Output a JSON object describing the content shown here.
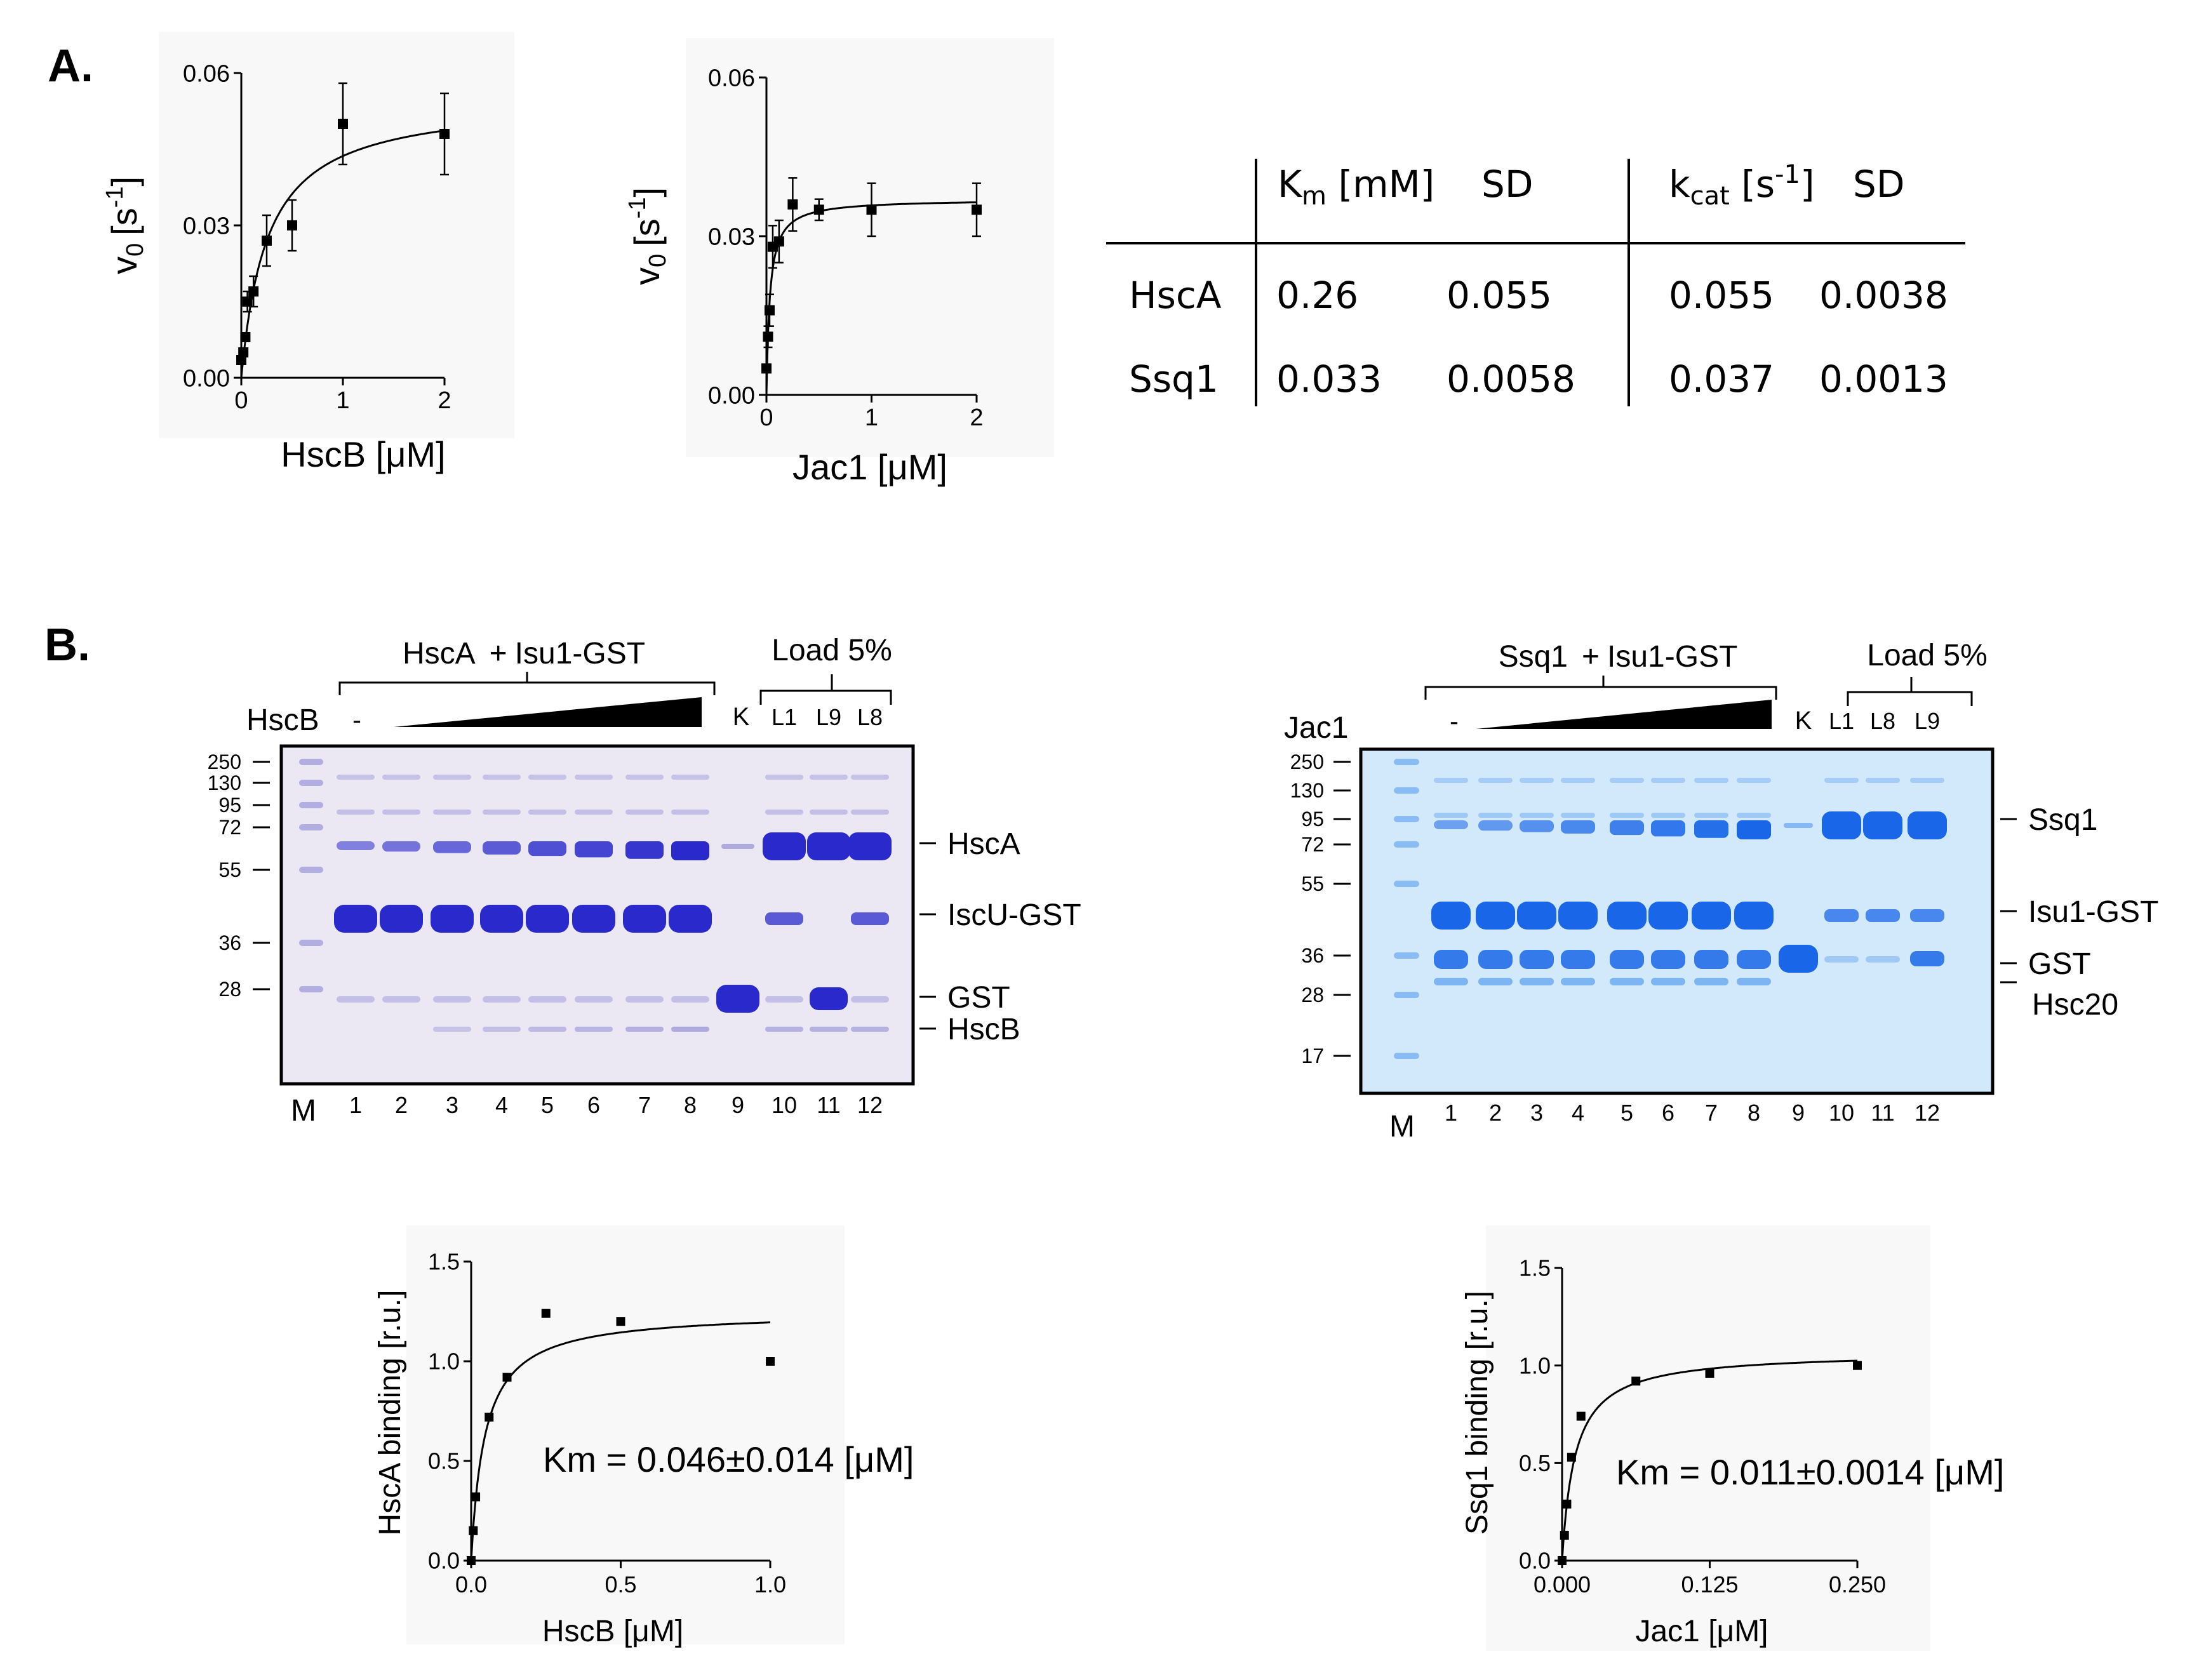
{
  "panel_labels": [
    "A.",
    "B."
  ],
  "chart_data": [
    {
      "id": "hscb-rate",
      "type": "scatter",
      "title": "",
      "xlabel": "HscB [μM]",
      "ylabel_main": "v",
      "ylabel_sub": "0",
      "ylabel_unit": "[s",
      "ylabel_sup": "-1",
      "ylabel_close": "]",
      "xlim": [
        0,
        2
      ],
      "ylim": [
        0,
        0.06
      ],
      "x_ticks": [
        0,
        1,
        2
      ],
      "x_tick_labels": [
        "0",
        "1",
        "2"
      ],
      "y_ticks": [
        0,
        0.03,
        0.06
      ],
      "y_tick_labels": [
        "0.00",
        "0.03",
        "0.06"
      ],
      "points": [
        {
          "x": 0.0,
          "y": 0.0035,
          "err": 0
        },
        {
          "x": 0.02,
          "y": 0.005,
          "err": 0
        },
        {
          "x": 0.04,
          "y": 0.008,
          "err": 0
        },
        {
          "x": 0.06,
          "y": 0.015,
          "err": 0.002
        },
        {
          "x": 0.12,
          "y": 0.017,
          "err": 0.003
        },
        {
          "x": 0.25,
          "y": 0.027,
          "err": 0.005
        },
        {
          "x": 0.5,
          "y": 0.03,
          "err": 0.005
        },
        {
          "x": 1.0,
          "y": 0.05,
          "err": 0.008
        },
        {
          "x": 2.0,
          "y": 0.048,
          "err": 0.008
        }
      ],
      "fit": {
        "vmax": 0.055,
        "km": 0.26
      }
    },
    {
      "id": "jac1-rate",
      "type": "scatter",
      "title": "",
      "xlabel": "Jac1 [μM]",
      "ylabel_main": "v",
      "ylabel_sub": "0",
      "ylabel_unit": "[s",
      "ylabel_sup": "-1",
      "ylabel_close": "]",
      "xlim": [
        0,
        2
      ],
      "ylim": [
        0,
        0.06
      ],
      "x_ticks": [
        0,
        1,
        2
      ],
      "x_tick_labels": [
        "0",
        "1",
        "2"
      ],
      "y_ticks": [
        0,
        0.03,
        0.06
      ],
      "y_tick_labels": [
        "0.00",
        "0.03",
        "0.06"
      ],
      "points": [
        {
          "x": 0.0,
          "y": 0.005,
          "err": 0
        },
        {
          "x": 0.015,
          "y": 0.011,
          "err": 0.002
        },
        {
          "x": 0.03,
          "y": 0.016,
          "err": 0.003
        },
        {
          "x": 0.06,
          "y": 0.028,
          "err": 0.004
        },
        {
          "x": 0.12,
          "y": 0.029,
          "err": 0.004
        },
        {
          "x": 0.25,
          "y": 0.036,
          "err": 0.005
        },
        {
          "x": 0.5,
          "y": 0.035,
          "err": 0.002
        },
        {
          "x": 1.0,
          "y": 0.035,
          "err": 0.005
        },
        {
          "x": 2.0,
          "y": 0.035,
          "err": 0.005
        }
      ],
      "fit": {
        "vmax": 0.037,
        "km": 0.033
      }
    },
    {
      "id": "table-kinetics",
      "type": "table",
      "headers": {
        "km_main": "K",
        "km_sub": "m",
        "km_unit": " [mM]",
        "sd1": "SD",
        "kcat_main": "k",
        "kcat_sub": "cat",
        "kcat_unit": " [s",
        "kcat_sup": "-1",
        "kcat_close": "]",
        "sd2": "SD"
      },
      "rows": [
        {
          "name": "HscA",
          "km": "0.26",
          "km_sd": "0.055",
          "kcat": "0.055",
          "kcat_sd": "0.0038"
        },
        {
          "name": "Ssq1",
          "km": "0.033",
          "km_sd": "0.0058",
          "kcat": "0.037",
          "kcat_sd": "0.0013"
        }
      ]
    },
    {
      "id": "hsca-binding",
      "type": "scatter",
      "title": "",
      "xlabel": "HscB [μM]",
      "ylabel": "HscA  binding [r.u.]",
      "annotation": "Km = 0.046±0.014 [μM]",
      "xlim": [
        0,
        1
      ],
      "ylim": [
        0,
        1.5
      ],
      "x_ticks": [
        0,
        0.5,
        1.0
      ],
      "x_tick_labels": [
        "0.0",
        "0.5",
        "1.0"
      ],
      "y_ticks": [
        0,
        0.5,
        1.0,
        1.5
      ],
      "y_tick_labels": [
        "0.0",
        "0.5",
        "1.0",
        "1.5"
      ],
      "points": [
        {
          "x": 0.0,
          "y": 0.0
        },
        {
          "x": 0.007,
          "y": 0.15
        },
        {
          "x": 0.015,
          "y": 0.32
        },
        {
          "x": 0.06,
          "y": 0.72
        },
        {
          "x": 0.12,
          "y": 0.92
        },
        {
          "x": 0.25,
          "y": 1.24
        },
        {
          "x": 0.5,
          "y": 1.2
        },
        {
          "x": 1.0,
          "y": 1.0
        }
      ],
      "fit": {
        "vmax": 1.25,
        "km": 0.046
      }
    },
    {
      "id": "ssq1-binding",
      "type": "scatter",
      "title": "",
      "xlabel": "Jac1 [μM]",
      "ylabel": "Ssq1  binding [r.u.]",
      "annotation": "Km = 0.011±0.0014 [μM]",
      "xlim": [
        0,
        0.25
      ],
      "ylim": [
        0,
        1.5
      ],
      "x_ticks": [
        0,
        0.125,
        0.25
      ],
      "x_tick_labels": [
        "0.000",
        "0.125",
        "0.250"
      ],
      "y_ticks": [
        0,
        0.5,
        1.0,
        1.5
      ],
      "y_tick_labels": [
        "0.0",
        "0.5",
        "1.0",
        "1.5"
      ],
      "points": [
        {
          "x": 0.0,
          "y": 0.0
        },
        {
          "x": 0.002,
          "y": 0.13
        },
        {
          "x": 0.004,
          "y": 0.29
        },
        {
          "x": 0.008,
          "y": 0.53
        },
        {
          "x": 0.016,
          "y": 0.74
        },
        {
          "x": 0.0625,
          "y": 0.92
        },
        {
          "x": 0.125,
          "y": 0.96
        },
        {
          "x": 0.25,
          "y": 1.0
        }
      ],
      "fit": {
        "vmax": 1.07,
        "km": 0.011
      }
    }
  ],
  "gels": [
    {
      "id": "gel-hsca",
      "group_label": "HscA",
      "group_plus": "+",
      "group_target": "Isu1-GST",
      "load_label": "Load 5%",
      "dash_label": "-",
      "k_label": "K",
      "load_lanes": [
        "L1",
        "L9",
        "L8"
      ],
      "cofactor_label": "HscB",
      "marker_label": "M",
      "mw_markers": [
        "250",
        "130",
        "95",
        "72",
        "55",
        "36",
        "28"
      ],
      "lane_numbers": [
        "1",
        "2",
        "3",
        "4",
        "5",
        "6",
        "7",
        "8",
        "9",
        "10",
        "11",
        "12"
      ],
      "band_labels": [
        "HscA",
        "IscU-GST",
        "GST",
        "HscB"
      ],
      "colors": {
        "bg": "#ebe8f4",
        "band": "#2a2acc",
        "light": "#a8a3dc"
      }
    },
    {
      "id": "gel-ssq1",
      "group_label": "Ssq1",
      "group_plus": "+",
      "group_target": "Isu1-GST",
      "load_label": "Load 5%",
      "dash_label": "-",
      "k_label": "K",
      "load_lanes": [
        "L1",
        "L8",
        "L9"
      ],
      "cofactor_label": "Jac1",
      "marker_label": "M",
      "mw_markers": [
        "250",
        "130",
        "95",
        "72",
        "55",
        "36",
        "28",
        "17"
      ],
      "lane_numbers": [
        "1",
        "2",
        "3",
        "4",
        "5",
        "6",
        "7",
        "8",
        "9",
        "10",
        "11",
        "12"
      ],
      "band_labels": [
        "Ssq1",
        "Isu1-GST",
        "GST",
        "Hsc20"
      ],
      "colors": {
        "bg": "#d2e9fb",
        "band": "#1a66e8",
        "light": "#7db4f2"
      }
    }
  ]
}
